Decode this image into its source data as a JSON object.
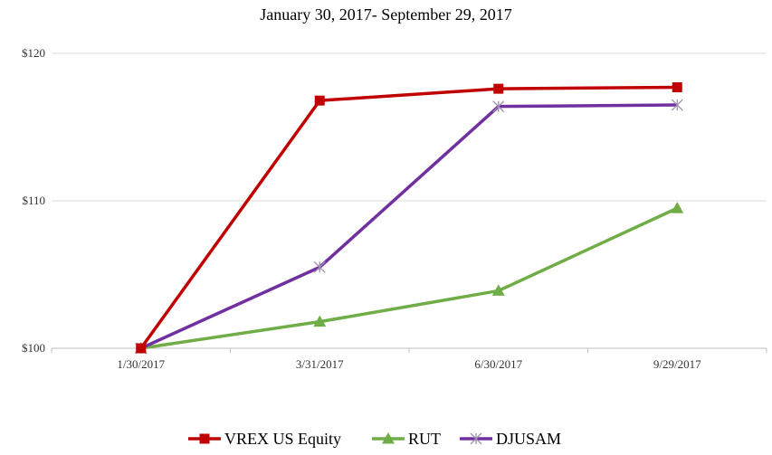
{
  "chart_data": {
    "type": "line",
    "title": "January 30, 2017- September 29, 2017",
    "categories": [
      "1/30/2017",
      "3/31/2017",
      "6/30/2017",
      "9/29/2017"
    ],
    "y_ticks": [
      "$100",
      "$110",
      "$120"
    ],
    "ylim": [
      100,
      120
    ],
    "grid": true,
    "legend_position": "bottom",
    "series": [
      {
        "name": "VREX US Equity",
        "values": [
          100,
          116.8,
          117.6,
          117.7
        ],
        "color": "#C00000",
        "marker": "square"
      },
      {
        "name": "RUT",
        "values": [
          100,
          101.8,
          103.9,
          109.5
        ],
        "color": "#70AD47",
        "marker": "triangle"
      },
      {
        "name": "DJUSAM",
        "values": [
          100,
          105.5,
          116.4,
          116.5
        ],
        "color": "#7030A0",
        "marker": "asterisk"
      }
    ]
  }
}
